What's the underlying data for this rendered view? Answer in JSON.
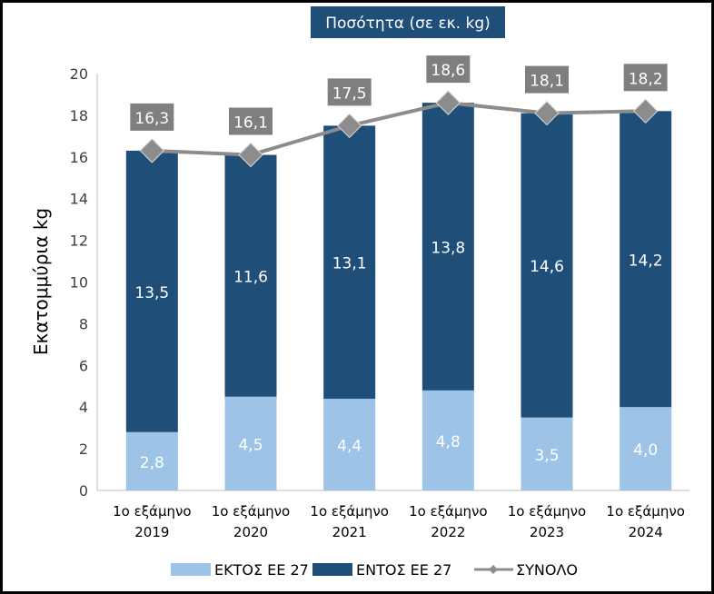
{
  "chart_data": {
    "type": "bar",
    "stacked": true,
    "title": "Ποσότητα (σε εκ. kg)",
    "ylabel": "Εκατομμύρια kg",
    "xlabel": "",
    "ylim": [
      0,
      20
    ],
    "yticks": [
      0,
      2,
      4,
      6,
      8,
      10,
      12,
      14,
      16,
      18,
      20
    ],
    "categories": [
      [
        "1ο εξάμηνο",
        "2019"
      ],
      [
        "1ο εξάμηνο",
        "2020"
      ],
      [
        "1ο εξάμηνο",
        "2021"
      ],
      [
        "1ο εξάμηνο",
        "2022"
      ],
      [
        "1ο εξάμηνο",
        "2023"
      ],
      [
        "1ο εξάμηνο",
        "2024"
      ]
    ],
    "series": [
      {
        "name": "ΕΚΤΟΣ ΕΕ 27",
        "type": "bar",
        "color": "#9dc3e6",
        "values": [
          2.8,
          4.5,
          4.4,
          4.8,
          3.5,
          4.0
        ],
        "labels": [
          "2,8",
          "4,5",
          "4,4",
          "4,8",
          "3,5",
          "4,0"
        ]
      },
      {
        "name": "ΕΝΤΟΣ ΕΕ 27",
        "type": "bar",
        "color": "#1f4e79",
        "values": [
          13.5,
          11.6,
          13.1,
          13.8,
          14.6,
          14.2
        ],
        "labels": [
          "13,5",
          "11,6",
          "13,1",
          "13,8",
          "14,6",
          "14,2"
        ]
      },
      {
        "name": "ΣΥΝΟΛΟ",
        "type": "line",
        "color": "#8c8c8c",
        "values": [
          16.3,
          16.1,
          17.5,
          18.6,
          18.1,
          18.2
        ],
        "labels": [
          "16,3",
          "16,1",
          "17,5",
          "18,6",
          "18,1",
          "18,2"
        ]
      }
    ],
    "legend_position": "bottom",
    "grid": false
  }
}
